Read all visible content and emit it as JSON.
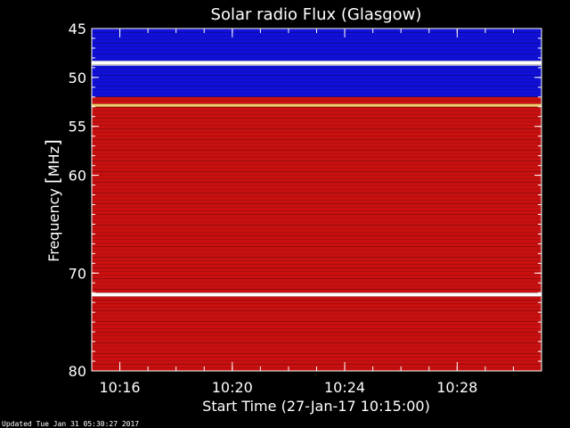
{
  "chart_data": {
    "type": "heatmap",
    "title": "Solar radio Flux (Glasgow)",
    "ylabel_pre": "Frequency ",
    "ylabel_unit": "MHz",
    "xlabel": "Start Time (27-Jan-17 10:15:00)",
    "x_range": [
      "10:15",
      "10:31"
    ],
    "y_range_mhz": [
      45,
      80
    ],
    "y_ticks": [
      {
        "value": 45,
        "label": "45"
      },
      {
        "value": 50,
        "label": "50"
      },
      {
        "value": 55,
        "label": "55"
      },
      {
        "value": 60,
        "label": "60"
      },
      {
        "value": 70,
        "label": "70"
      },
      {
        "value": 80,
        "label": "80"
      }
    ],
    "x_ticks": [
      {
        "value": "10:16",
        "label": "10:16"
      },
      {
        "value": "10:20",
        "label": "10:20"
      },
      {
        "value": "10:24",
        "label": "10:24"
      },
      {
        "value": "10:28",
        "label": "10:28"
      }
    ],
    "colors": {
      "low": "#1010d8",
      "mid": "#c81010",
      "high": "#f0d070",
      "peak": "#ffffff"
    },
    "bands": [
      {
        "from": 45.0,
        "to": 48.3,
        "level": "low"
      },
      {
        "from": 48.3,
        "to": 48.8,
        "level": "peak"
      },
      {
        "from": 48.8,
        "to": 52.0,
        "level": "low"
      },
      {
        "from": 52.0,
        "to": 52.7,
        "level": "mid"
      },
      {
        "from": 52.7,
        "to": 53.0,
        "level": "high"
      },
      {
        "from": 53.0,
        "to": 72.0,
        "level": "mid"
      },
      {
        "from": 72.0,
        "to": 72.4,
        "level": "peak"
      },
      {
        "from": 72.4,
        "to": 80.0,
        "level": "mid"
      }
    ]
  },
  "footer": "Updated Tue Jan 31 05:30:27 2017"
}
